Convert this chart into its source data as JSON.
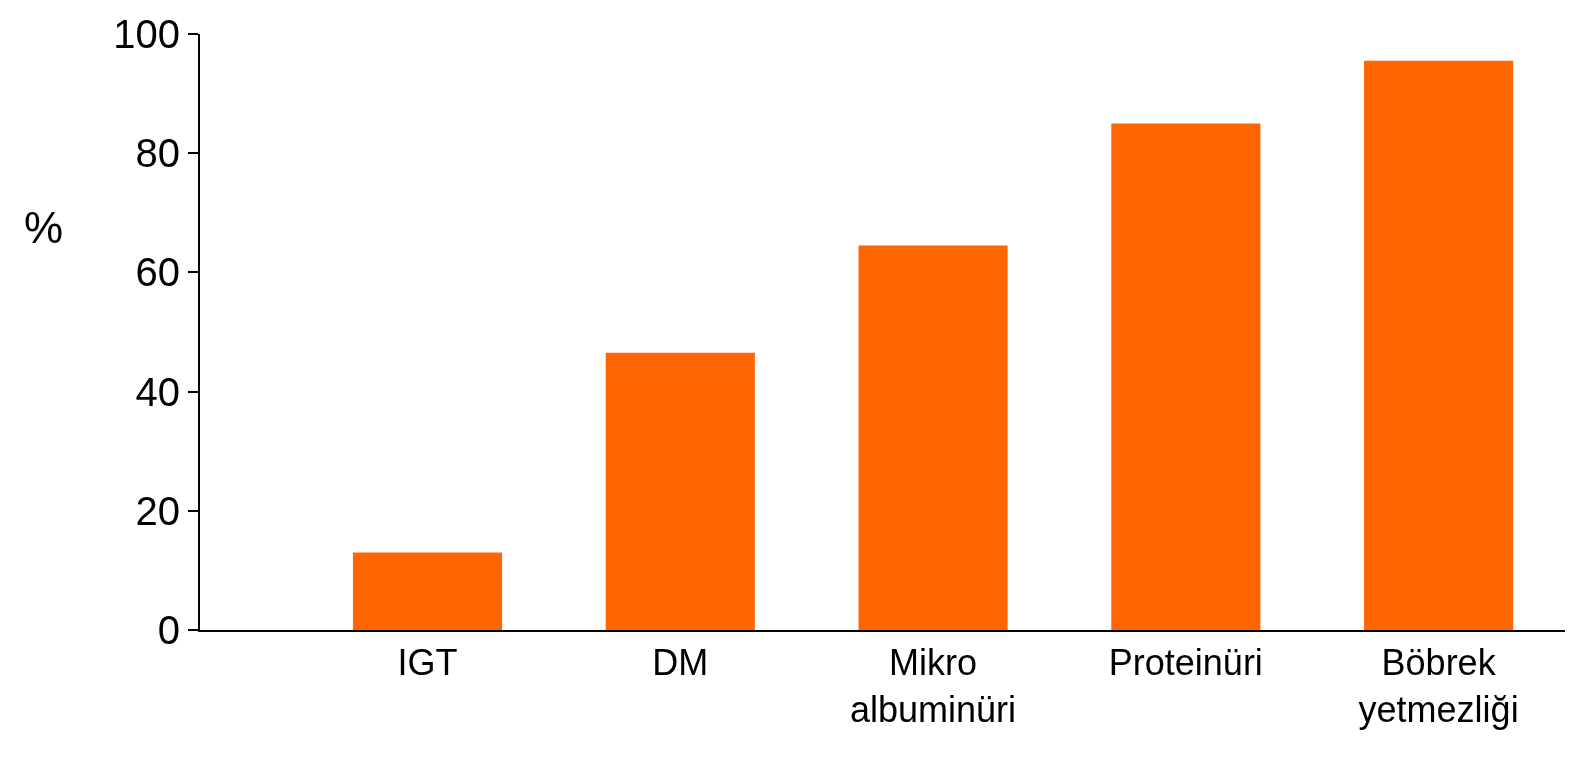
{
  "chart_data": {
    "type": "bar",
    "ylabel": "%",
    "categories": [
      "IGT",
      "DM",
      "Mikro\nalbuminüri",
      "Proteinüri",
      "Böbrek\nyetmezliği"
    ],
    "values": [
      13,
      46.5,
      64.5,
      85,
      95.5
    ],
    "color": "#ff6600",
    "ylim": [
      0,
      100
    ],
    "yticks": [
      0,
      20,
      40,
      60,
      80,
      100
    ]
  }
}
